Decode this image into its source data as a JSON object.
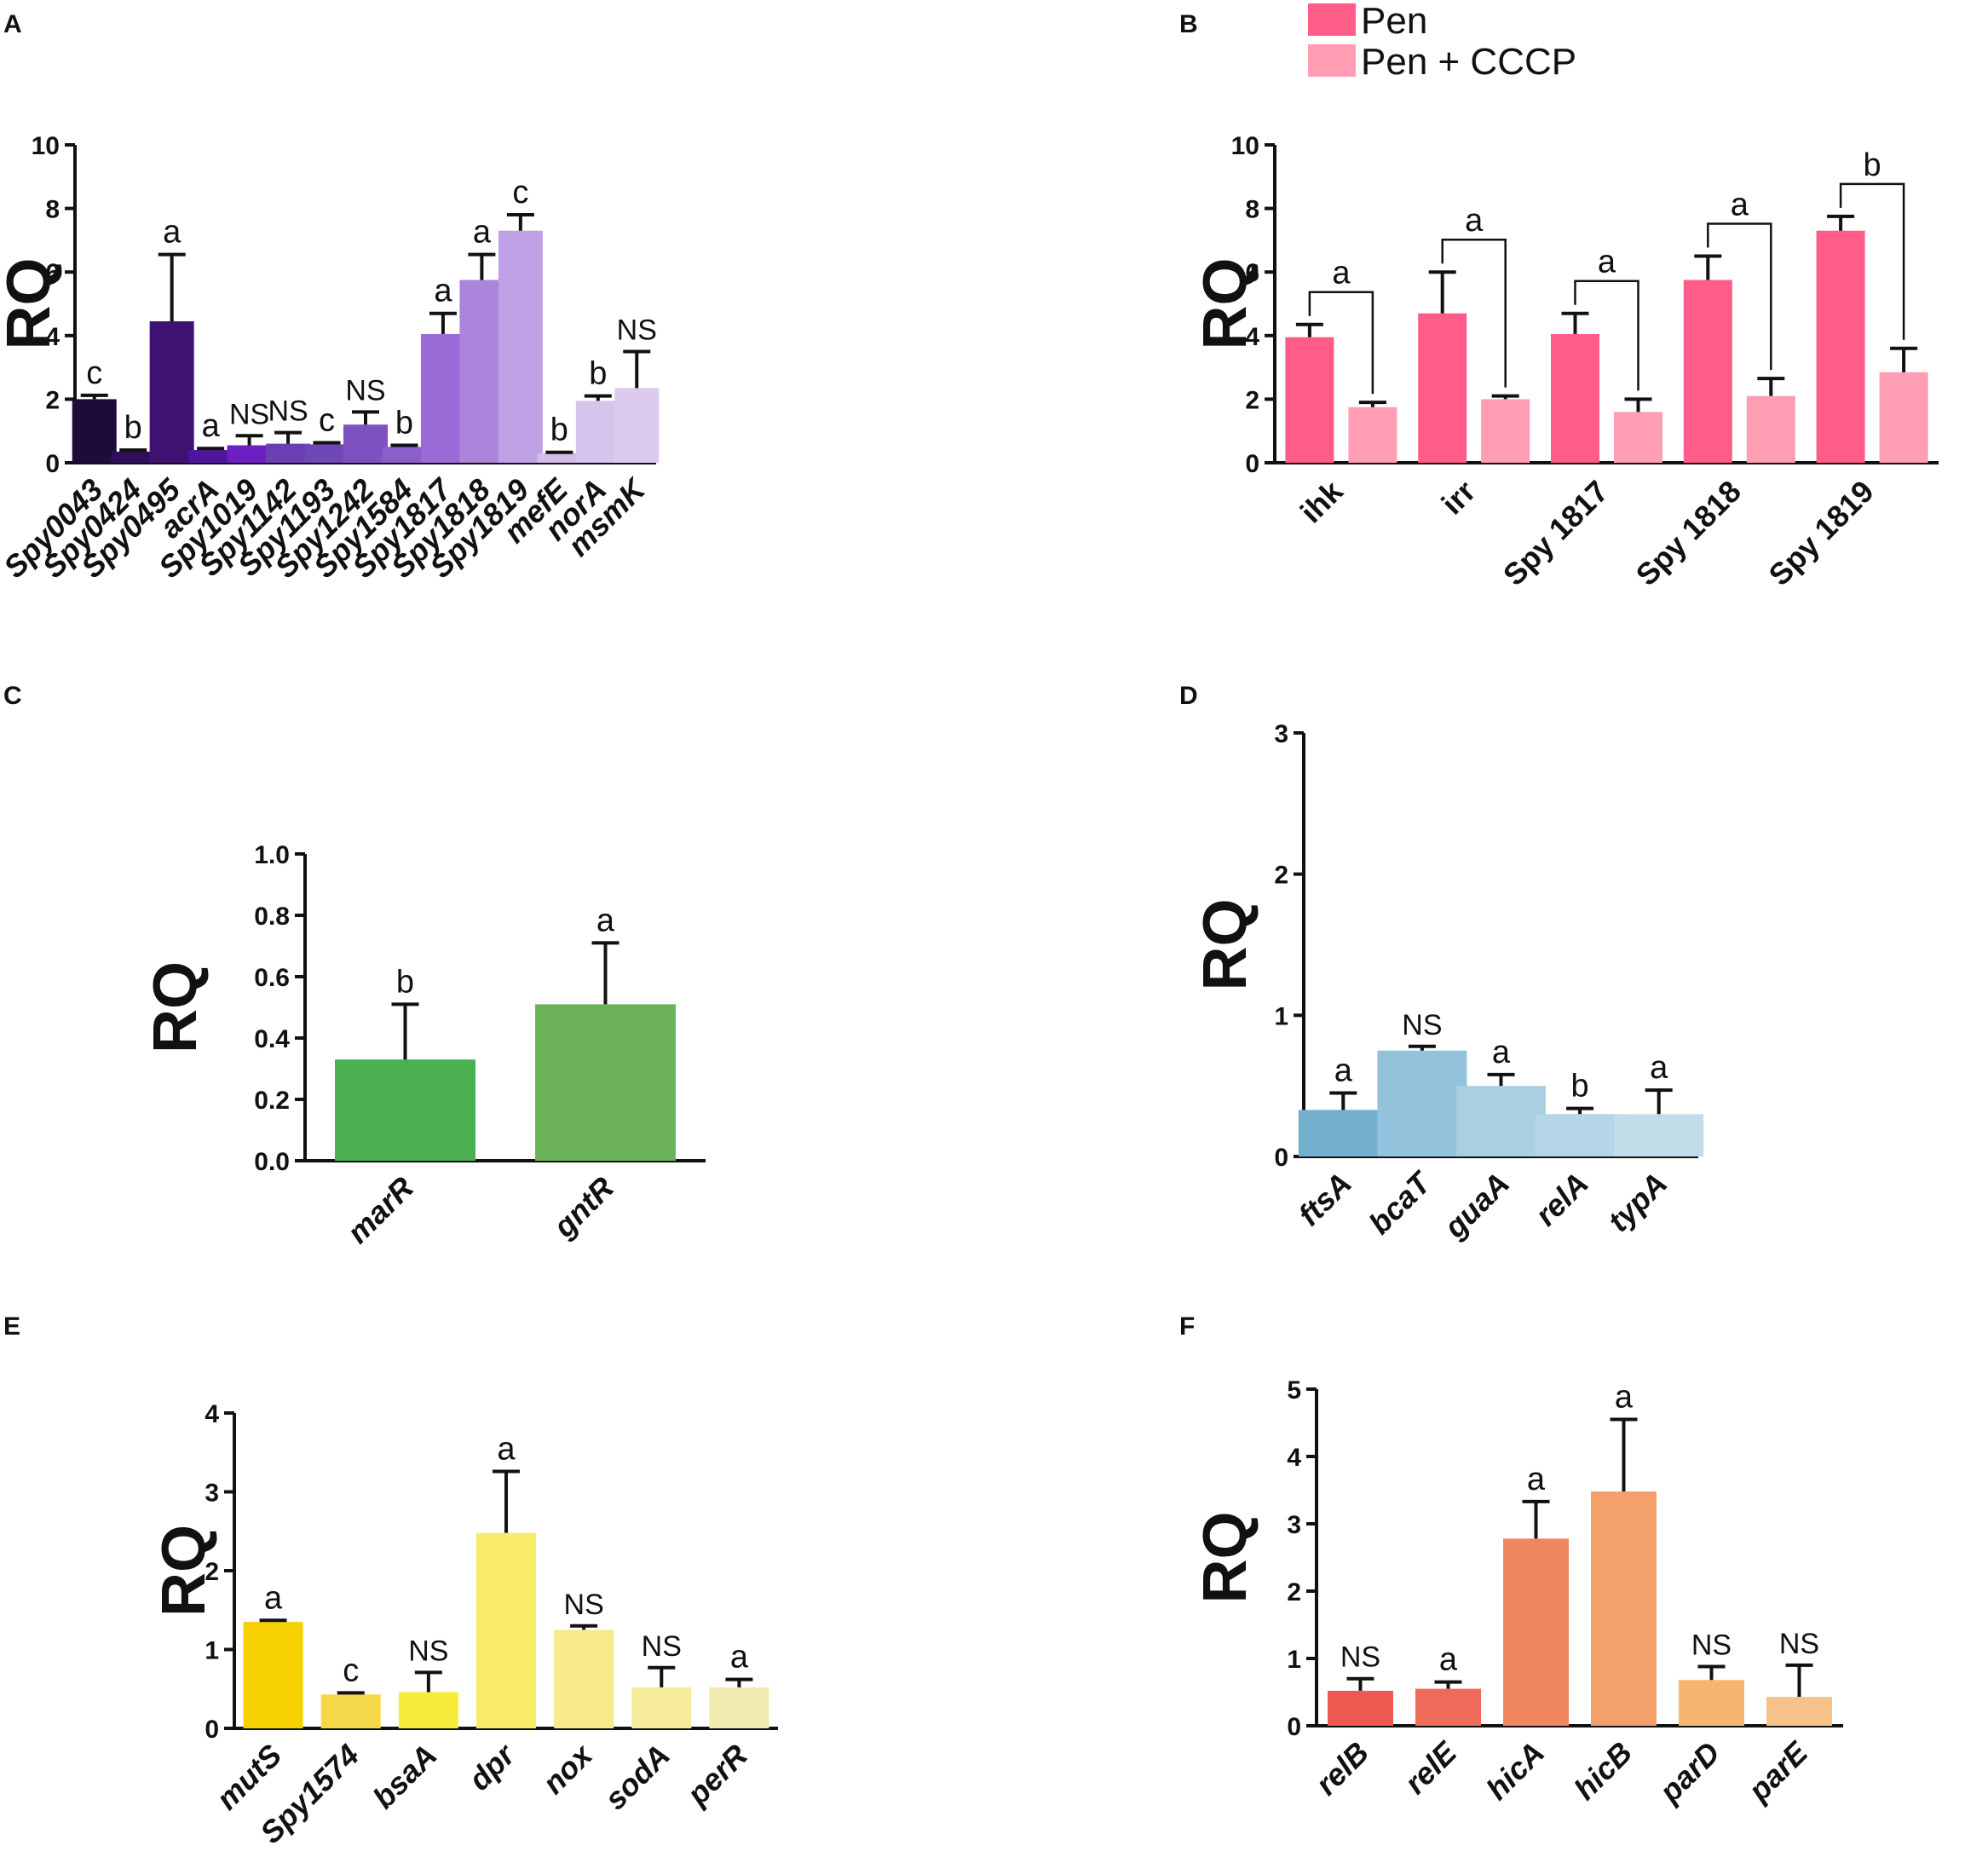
{
  "chart_data": [
    {
      "panel": "A",
      "type": "bar",
      "ylabel": "RQ",
      "ylim": [
        0,
        10
      ],
      "yticks": [
        "0",
        "2",
        "4",
        "6",
        "8",
        "10"
      ],
      "categories": [
        "Spy0043",
        "Spy0424",
        "Spy0495",
        "acrA",
        "Spy1019",
        "Spy1142",
        "Spy1193",
        "Spy1242",
        "Spy1584",
        "Spy1817",
        "Spy1818",
        "Spy1819",
        "mefE",
        "norA",
        "msmK"
      ],
      "values": [
        2.0,
        0.35,
        4.45,
        0.4,
        0.55,
        0.6,
        0.58,
        1.2,
        0.5,
        4.05,
        5.75,
        7.3,
        0.3,
        1.95,
        2.35
      ],
      "errors": [
        0.12,
        0.05,
        2.1,
        0.05,
        0.3,
        0.35,
        0.05,
        0.4,
        0.05,
        0.65,
        0.8,
        0.5,
        0.03,
        0.15,
        1.15
      ],
      "labels": [
        "c",
        "b",
        "a",
        "a",
        "NS",
        "NS",
        "c",
        "NS",
        "b",
        "a",
        "a",
        "c",
        "b",
        "b",
        "NS"
      ],
      "colors": [
        "#1c0c3a",
        "#2e0f5c",
        "#3f1170",
        "#5214a0",
        "#6e1fc4",
        "#6a3fb4",
        "#7048b6",
        "#7d52c0",
        "#8a5ecb",
        "#9a6ad6",
        "#ab84dc",
        "#bfa0e4",
        "#d2bcea",
        "#d7c4ec",
        "#ddcbef"
      ]
    },
    {
      "panel": "B",
      "type": "bar",
      "ylabel": "RQ",
      "ylim": [
        0,
        10
      ],
      "yticks": [
        "0",
        "2",
        "4",
        "6",
        "8",
        "10"
      ],
      "categories": [
        "ihk",
        "irr",
        "Spy 1817",
        "Spy 1818",
        "Spy 1819"
      ],
      "series": [
        {
          "name": "Pen",
          "color": "#ff5c8a",
          "values": [
            3.95,
            4.7,
            4.05,
            5.75,
            7.3
          ],
          "errors": [
            0.4,
            1.3,
            0.65,
            0.75,
            0.45
          ]
        },
        {
          "name": "Pen + CCCP",
          "color": "#ff9db5",
          "values": [
            1.75,
            2.0,
            1.6,
            2.1,
            2.85
          ],
          "errors": [
            0.15,
            0.1,
            0.4,
            0.55,
            0.75
          ]
        }
      ],
      "labels": [
        "a",
        "a",
        "a",
        "a",
        "b"
      ]
    },
    {
      "panel": "C",
      "type": "bar",
      "ylabel": "RQ",
      "ylim": [
        0,
        1.0
      ],
      "yticks": [
        "0.0",
        "0.2",
        "0.4",
        "0.6",
        "0.8",
        "1.0"
      ],
      "categories": [
        "marR",
        "gntR"
      ],
      "values": [
        0.33,
        0.51
      ],
      "errors": [
        0.18,
        0.2
      ],
      "labels": [
        "b",
        "a"
      ],
      "colors": [
        "#4caf50",
        "#6db35a"
      ]
    },
    {
      "panel": "D",
      "type": "bar",
      "ylabel": "RQ",
      "ylim": [
        0,
        3
      ],
      "yticks": [
        "0",
        "1",
        "2",
        "3"
      ],
      "categories": [
        "ftsA",
        "bcaT",
        "guaA",
        "relA",
        "typA"
      ],
      "values": [
        0.33,
        0.75,
        0.5,
        0.3,
        0.3
      ],
      "errors": [
        0.12,
        0.03,
        0.08,
        0.04,
        0.17
      ],
      "labels": [
        "a",
        "NS",
        "a",
        "b",
        "a"
      ],
      "colors": [
        "#75afd0",
        "#93c2dc",
        "#a9cfe2",
        "#b5d6e7",
        "#c2dcea"
      ]
    },
    {
      "panel": "E",
      "type": "bar",
      "ylabel": "RQ",
      "ylim": [
        0,
        4
      ],
      "yticks": [
        "0",
        "1",
        "2",
        "3",
        "4"
      ],
      "categories": [
        "mutS",
        "Spy1574",
        "bsaA",
        "dpr",
        "nox",
        "sodA",
        "perR"
      ],
      "values": [
        1.35,
        0.43,
        0.46,
        2.48,
        1.25,
        0.52,
        0.52
      ],
      "errors": [
        0.02,
        0.02,
        0.25,
        0.78,
        0.05,
        0.25,
        0.1
      ],
      "labels": [
        "a",
        "c",
        "NS",
        "a",
        "NS",
        "NS",
        "a"
      ],
      "colors": [
        "#f7d000",
        "#f5d84a",
        "#f8ec3a",
        "#f8ec68",
        "#f6ea8a",
        "#f5eb9a",
        "#f2ebb0"
      ]
    },
    {
      "panel": "F",
      "type": "bar",
      "ylabel": "RQ",
      "ylim": [
        0,
        5
      ],
      "yticks": [
        "0",
        "1",
        "2",
        "3",
        "4",
        "5"
      ],
      "categories": [
        "relB",
        "relE",
        "hicA",
        "hicB",
        "parD",
        "parE"
      ],
      "values": [
        0.52,
        0.55,
        2.78,
        3.48,
        0.68,
        0.43
      ],
      "errors": [
        0.18,
        0.1,
        0.55,
        1.07,
        0.2,
        0.47
      ],
      "labels": [
        "NS",
        "a",
        "a",
        "a",
        "NS",
        "NS"
      ],
      "colors": [
        "#ee5a52",
        "#ee6a5a",
        "#f0865f",
        "#f4a06a",
        "#f6b672",
        "#f6c48a"
      ]
    }
  ]
}
